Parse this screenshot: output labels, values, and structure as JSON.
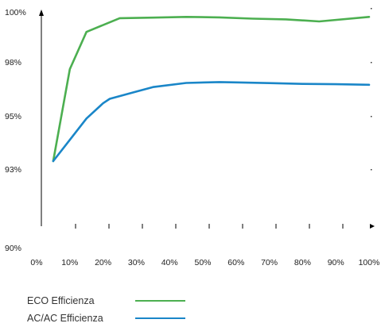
{
  "chart_data": {
    "type": "line",
    "title": "",
    "xlabel": "",
    "ylabel": "",
    "x_tick_labels": [
      "0%",
      "10%",
      "20%",
      "30%",
      "40%",
      "50%",
      "60%",
      "70%",
      "80%",
      "90%",
      "100%"
    ],
    "y_tick_labels": [
      "90%",
      "93%",
      "95%",
      "98%",
      "100%"
    ],
    "series": [
      {
        "name": "ECO Efficienza",
        "color": "#4caf50",
        "x": [
          5,
          10,
          15,
          25,
          35,
          45,
          55,
          65,
          75,
          85,
          100
        ],
        "y": [
          93.3,
          97.6,
          99.2,
          99.75,
          99.77,
          99.8,
          99.78,
          99.73,
          99.7,
          99.62,
          99.8
        ]
      },
      {
        "name": "AC/AC Efficienza",
        "color": "#1a86c8",
        "x": [
          5,
          10,
          15,
          20,
          22,
          30,
          35,
          45,
          55,
          60,
          70,
          80,
          90,
          100
        ],
        "y": [
          93.3,
          94.1,
          94.9,
          95.7,
          95.95,
          96.35,
          96.6,
          96.83,
          96.88,
          96.86,
          96.82,
          96.78,
          96.76,
          96.73
        ]
      }
    ],
    "legend_position": "bottom-left",
    "grid": false
  }
}
